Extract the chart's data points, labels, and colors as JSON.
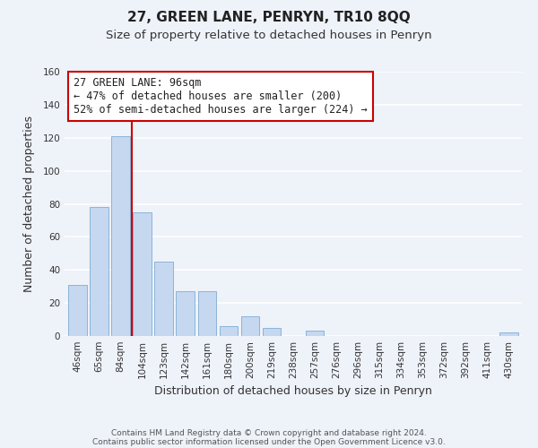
{
  "title": "27, GREEN LANE, PENRYN, TR10 8QQ",
  "subtitle": "Size of property relative to detached houses in Penryn",
  "xlabel": "Distribution of detached houses by size in Penryn",
  "ylabel": "Number of detached properties",
  "bar_labels": [
    "46sqm",
    "65sqm",
    "84sqm",
    "104sqm",
    "123sqm",
    "142sqm",
    "161sqm",
    "180sqm",
    "200sqm",
    "219sqm",
    "238sqm",
    "257sqm",
    "276sqm",
    "296sqm",
    "315sqm",
    "334sqm",
    "353sqm",
    "372sqm",
    "392sqm",
    "411sqm",
    "430sqm"
  ],
  "bar_values": [
    31,
    78,
    121,
    75,
    45,
    27,
    27,
    6,
    12,
    5,
    0,
    3,
    0,
    0,
    0,
    0,
    0,
    0,
    0,
    0,
    2
  ],
  "bar_color": "#c5d8f0",
  "bar_edge_color": "#8ab4d8",
  "ylim": [
    0,
    160
  ],
  "yticks": [
    0,
    20,
    40,
    60,
    80,
    100,
    120,
    140,
    160
  ],
  "vline_color": "#cc0000",
  "annotation_text": "27 GREEN LANE: 96sqm\n← 47% of detached houses are smaller (200)\n52% of semi-detached houses are larger (224) →",
  "annotation_box_color": "#ffffff",
  "annotation_box_edge": "#cc0000",
  "footer_line1": "Contains HM Land Registry data © Crown copyright and database right 2024.",
  "footer_line2": "Contains public sector information licensed under the Open Government Licence v3.0.",
  "bg_color": "#eef2f9",
  "grid_color": "#ffffff",
  "title_fontsize": 11,
  "subtitle_fontsize": 9.5,
  "axis_label_fontsize": 9,
  "tick_fontsize": 7.5,
  "annotation_fontsize": 8.5,
  "footer_fontsize": 6.5
}
